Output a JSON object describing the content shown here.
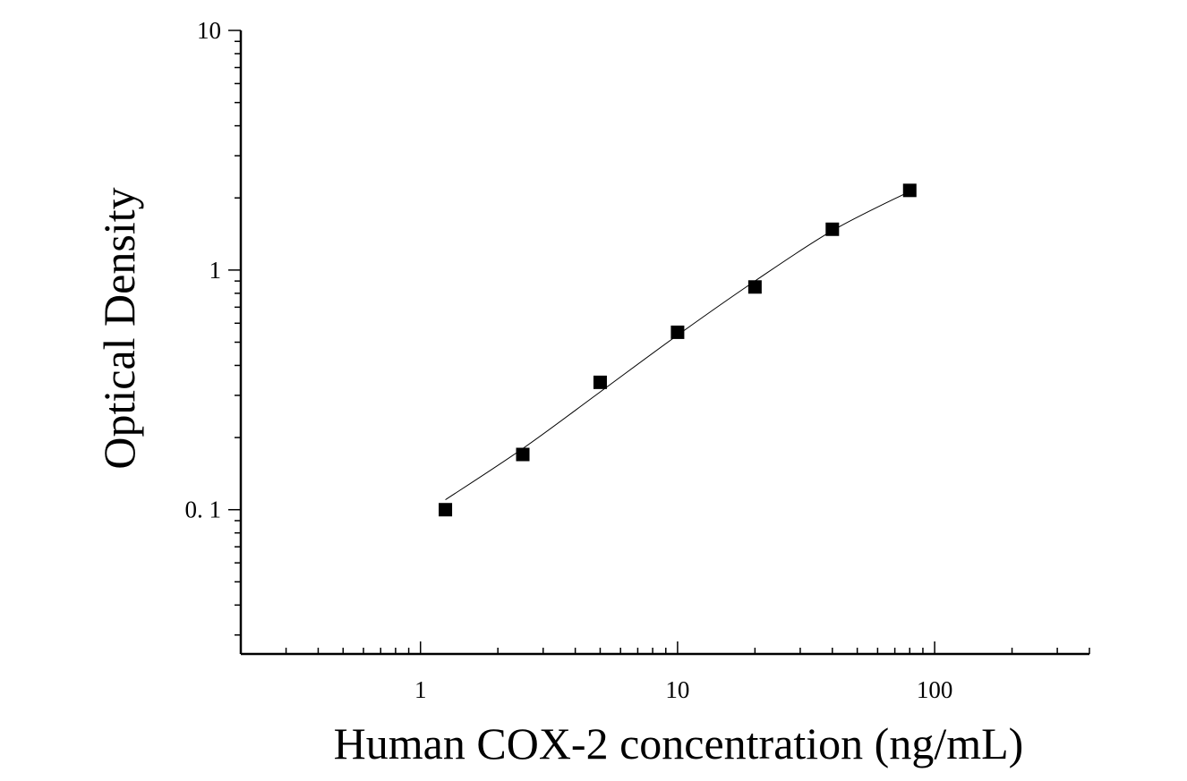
{
  "chart_data": {
    "type": "scatter",
    "title": "",
    "xlabel": "Human COX-2 concentration (ng/mL)",
    "ylabel": "Optical Density",
    "x_scale": "log",
    "y_scale": "log",
    "xlim": [
      0.2,
      400
    ],
    "ylim": [
      0.025,
      10
    ],
    "x_ticks": [
      1,
      10,
      100
    ],
    "x_tick_labels": [
      "1",
      "10",
      "100"
    ],
    "y_ticks": [
      0.1,
      1,
      10
    ],
    "y_tick_labels": [
      "0. 1",
      "1",
      "10"
    ],
    "grid": false,
    "legend": "none",
    "marker": "square",
    "color": "#000000",
    "series": [
      {
        "x": [
          1.25,
          2.5,
          5,
          10,
          20,
          40,
          80
        ],
        "y": [
          0.1,
          0.17,
          0.34,
          0.55,
          0.85,
          1.48,
          2.15
        ]
      }
    ],
    "fit_curve": {
      "type": "smooth",
      "x": [
        1.25,
        2.5,
        5,
        10,
        20,
        40,
        80
      ],
      "y": [
        0.11,
        0.18,
        0.31,
        0.535,
        0.9,
        1.46,
        2.13
      ]
    }
  }
}
